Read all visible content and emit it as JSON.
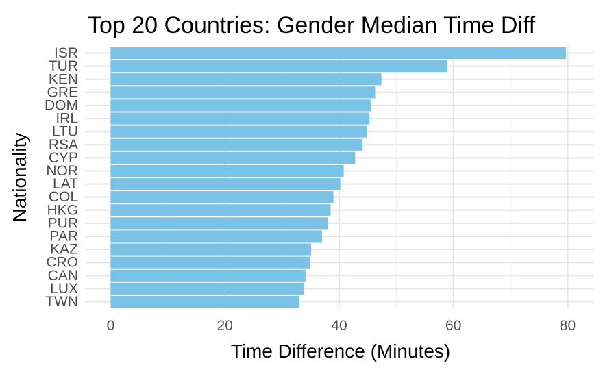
{
  "chart_data": {
    "type": "bar",
    "orientation": "horizontal",
    "title": "Top 20 Countries: Gender Median Time Diff",
    "xlabel": "Time Difference (Minutes)",
    "ylabel": "Nationality",
    "categories": [
      "ISR",
      "TUR",
      "KEN",
      "GRE",
      "DOM",
      "IRL",
      "LTU",
      "RSA",
      "CYP",
      "NOR",
      "LAT",
      "COL",
      "HKG",
      "PUR",
      "PAR",
      "KAZ",
      "CRO",
      "CAN",
      "LUX",
      "TWN"
    ],
    "values": [
      79.7,
      58.9,
      47.4,
      46.3,
      45.5,
      45.3,
      44.9,
      44.1,
      42.8,
      40.8,
      40.2,
      39.0,
      38.5,
      38.0,
      37.0,
      35.1,
      34.9,
      34.1,
      33.8,
      33.0
    ],
    "xlim": [
      -4.5,
      84.5
    ],
    "xticks": [
      0,
      20,
      40,
      60,
      80
    ],
    "bar_color": "#7AC3E6",
    "grid": true,
    "legend": "none"
  }
}
